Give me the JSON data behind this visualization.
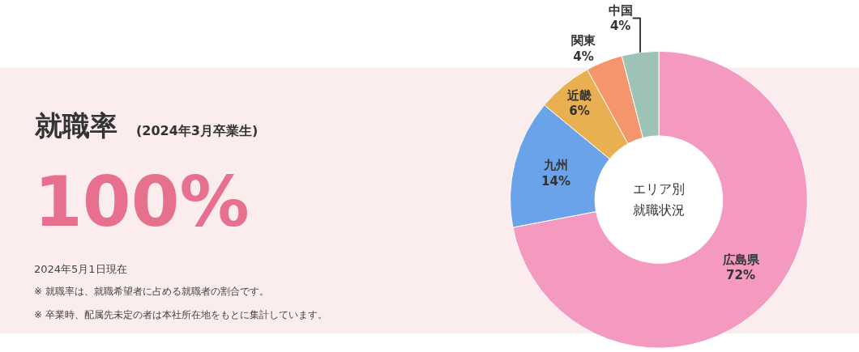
{
  "chart_data": [
    {
      "type": "other",
      "title": "就職率",
      "subtitle": "(2024年3月卒業生)",
      "annotations": [
        "100%",
        "2024年5月1日現在",
        "※ 就職率は、就職希望者に占める就職者の割合です。",
        "※ 卒業時、配属先未定の者は本社所在地をもとに集計しています。"
      ]
    },
    {
      "type": "donut",
      "categories": [
        "広島県",
        "九州",
        "近畿",
        "関東",
        "中国"
      ],
      "values": [
        72,
        14,
        6,
        4,
        4
      ],
      "value_labels": [
        "72%",
        "14%",
        "6%",
        "4%",
        "4%"
      ],
      "colors": [
        "#f49ac1",
        "#6aa3ea",
        "#e8b050",
        "#f5956b",
        "#9dc3b6"
      ],
      "annotations": [
        "エリア別",
        "就職状況"
      ]
    }
  ]
}
